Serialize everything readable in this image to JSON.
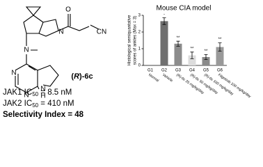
{
  "compound": {
    "label": {
      "pre": "(",
      "italic": "R",
      "post": ")-6c"
    },
    "atoms": [
      "O",
      "N",
      "CN",
      "N",
      "N",
      "N",
      "N",
      "H"
    ],
    "lines": [
      {
        "pre": "JAK1 IC",
        "sub": "50",
        "post": " = 8.5 nM"
      },
      {
        "pre": "JAK2 IC",
        "sub": "50",
        "post": " = 410 nM"
      }
    ],
    "selectivity": "Selectivity Index = 48"
  },
  "chart_data": {
    "type": "bar",
    "title": "Mouse CIA model",
    "y_label": [
      "Histological semiquantative",
      "scores of ankles (Max = 3)"
    ],
    "categories": [
      "G1",
      "G2",
      "G3",
      "G4",
      "G5",
      "G6"
    ],
    "group_labels": [
      "Normal",
      "Vehicle",
      "(R)-6c 25 mg/kg/day",
      "(R)-6c 50 mg/kg/day",
      "(R)-6c 100 mg/kg/day",
      "Filgotinib 100 mg/kg/day"
    ],
    "values": [
      0,
      2.65,
      1.3,
      0.6,
      0.5,
      1.1
    ],
    "errors": [
      0,
      0.2,
      0.15,
      0.2,
      0.15,
      0.25
    ],
    "colors": [
      "#777777",
      "#6f6f6f",
      "#8c8c8c",
      "#dcdcdc",
      "#8a8a8a",
      "#999999"
    ],
    "significance": [
      null,
      "-",
      "**",
      "**",
      "**",
      "**"
    ],
    "ylim": [
      0,
      3
    ],
    "yticks": [
      0,
      1,
      2,
      3
    ]
  }
}
